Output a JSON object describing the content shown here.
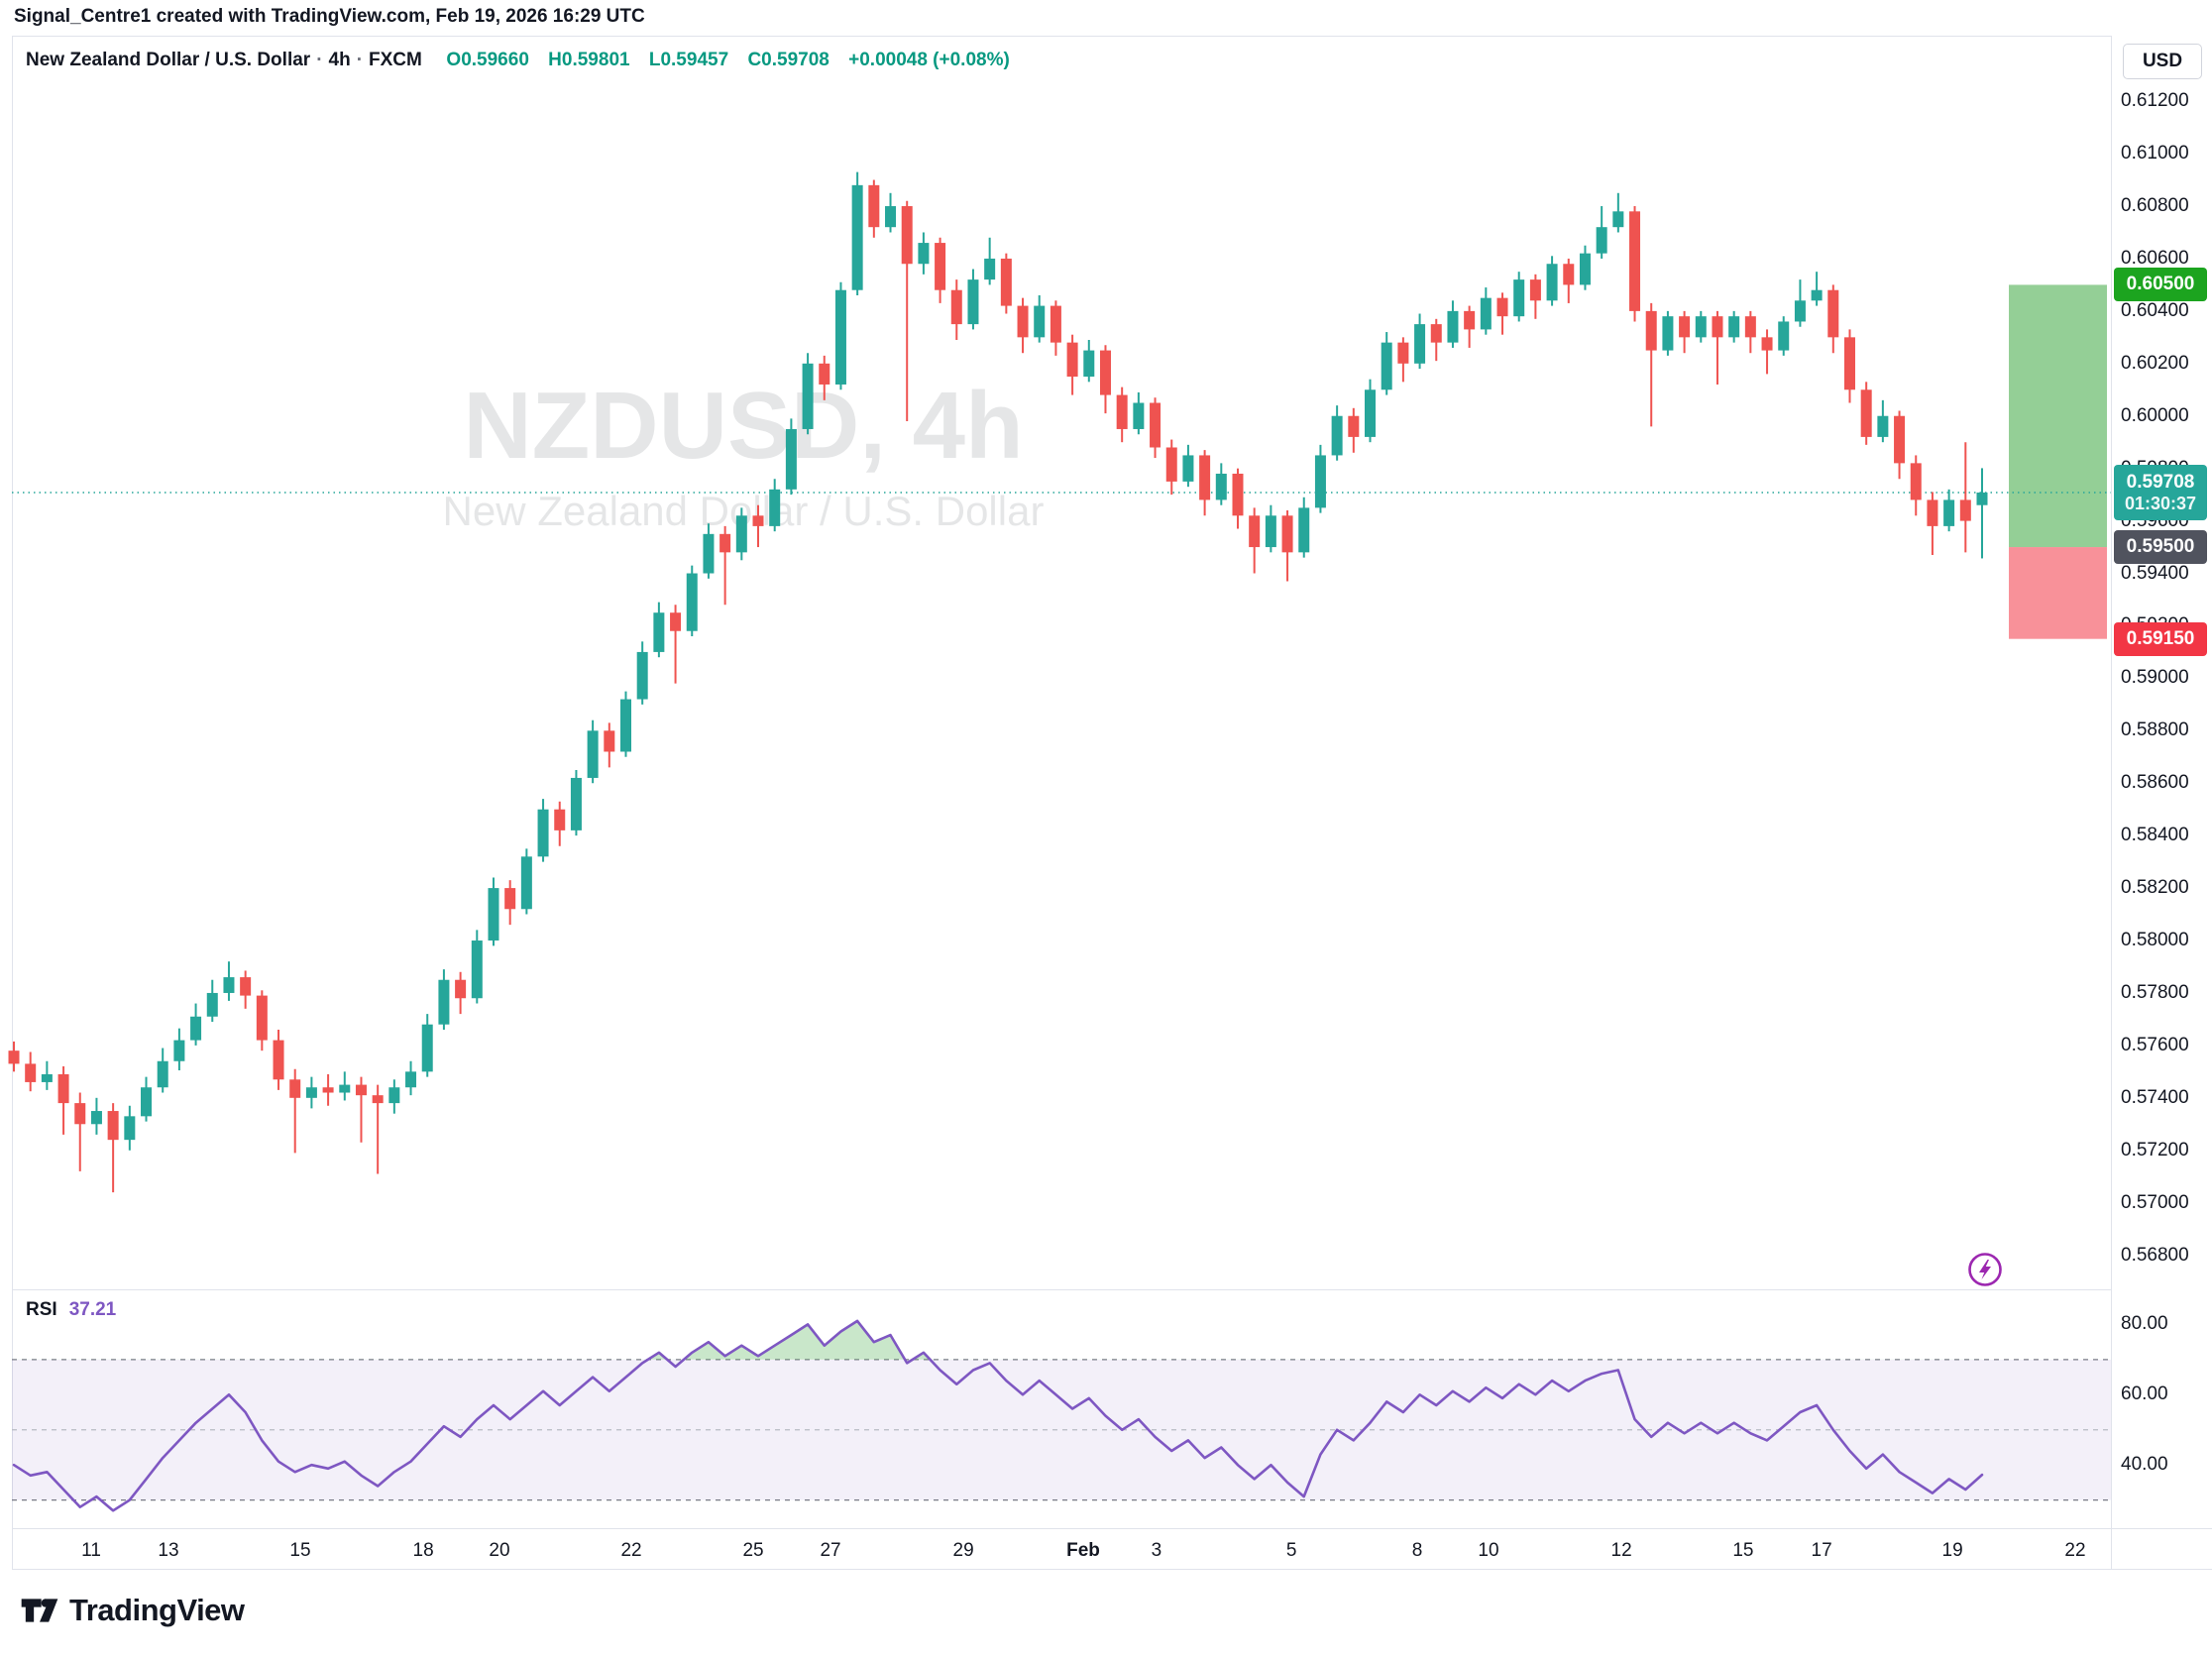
{
  "attribution": "Signal_Centre1 created with TradingView.com, Feb 19, 2026 16:29 UTC",
  "header": {
    "title": "New Zealand Dollar / U.S. Dollar",
    "dot": "·",
    "interval": "4h",
    "exchange": "FXCM",
    "open": "O0.59660",
    "high": "H0.59801",
    "low": "L0.59457",
    "close": "C0.59708",
    "change": "+0.00048 (+0.08%)"
  },
  "watermark": {
    "title": "NZDUSD, 4h",
    "subtitle": "New Zealand Dollar / U.S. Dollar"
  },
  "axis": {
    "currency_button": "USD",
    "price_ticks": [
      "0.61200",
      "0.61000",
      "0.60800",
      "0.60600",
      "0.60400",
      "0.60200",
      "0.60000",
      "0.59800",
      "0.59600",
      "0.59400",
      "0.59200",
      "0.59000",
      "0.58800",
      "0.58600",
      "0.58400",
      "0.58200",
      "0.58000",
      "0.57800",
      "0.57600",
      "0.57400",
      "0.57200",
      "0.57000",
      "0.56800"
    ],
    "price_max": 0.6145,
    "price_min": 0.5667
  },
  "chips": {
    "target": {
      "text": "0.60500",
      "price": 0.605,
      "bg": "#1CA41F"
    },
    "current": {
      "price_text": "0.59708",
      "countdown": "01:30:37",
      "price": 0.59708,
      "bg": "#26A69A"
    },
    "mid": {
      "text": "0.59500",
      "price": 0.595,
      "bg": "#50535E"
    },
    "stop": {
      "text": "0.59150",
      "price": 0.5915,
      "bg": "#F23645"
    }
  },
  "zones": [
    {
      "from": 0.605,
      "to": 0.595,
      "color": "rgba(76,175,80,0.60)"
    },
    {
      "from": 0.595,
      "to": 0.5915,
      "color": "rgba(242,54,69,0.55)"
    }
  ],
  "current_price_line": {
    "price": 0.59708,
    "color": "#26A69A"
  },
  "footer": {
    "brand": "TradingView"
  },
  "chart_data": {
    "type": "candlestick",
    "symbol": "NZDUSD",
    "interval": "4h",
    "title": "New Zealand Dollar / U.S. Dollar - 4h - FXCM",
    "ylabel": "Price (USD)",
    "ylim": [
      0.5667,
      0.6145
    ],
    "grid": false,
    "up_color": "#26A69A",
    "down_color": "#EF5350",
    "last_bar": {
      "open": 0.5966,
      "high": 0.59801,
      "low": 0.59457,
      "close": 0.59708
    },
    "candles": [
      [
        0.5758,
        0.57615,
        0.575,
        0.5753
      ],
      [
        0.5753,
        0.57575,
        0.57425,
        0.5746
      ],
      [
        0.5746,
        0.5754,
        0.5743,
        0.5749
      ],
      [
        0.5749,
        0.5752,
        0.5726,
        0.5738
      ],
      [
        0.5738,
        0.5742,
        0.5712,
        0.573
      ],
      [
        0.573,
        0.574,
        0.5726,
        0.5735
      ],
      [
        0.5735,
        0.5738,
        0.5704,
        0.5724
      ],
      [
        0.5724,
        0.5737,
        0.572,
        0.5733
      ],
      [
        0.5733,
        0.5748,
        0.5731,
        0.5744
      ],
      [
        0.5744,
        0.5759,
        0.5742,
        0.5754
      ],
      [
        0.5754,
        0.57665,
        0.57505,
        0.5762
      ],
      [
        0.5762,
        0.5776,
        0.576,
        0.5771
      ],
      [
        0.5771,
        0.5785,
        0.5769,
        0.578
      ],
      [
        0.578,
        0.5792,
        0.5777,
        0.5786
      ],
      [
        0.5786,
        0.57885,
        0.5774,
        0.5779
      ],
      [
        0.5779,
        0.5781,
        0.5758,
        0.5762
      ],
      [
        0.5762,
        0.5766,
        0.5743,
        0.5747
      ],
      [
        0.5747,
        0.5751,
        0.5719,
        0.574
      ],
      [
        0.574,
        0.5748,
        0.5736,
        0.5744
      ],
      [
        0.5744,
        0.5749,
        0.5737,
        0.5742
      ],
      [
        0.5742,
        0.575,
        0.5739,
        0.5745
      ],
      [
        0.5745,
        0.5748,
        0.5723,
        0.5741
      ],
      [
        0.5741,
        0.5745,
        0.5711,
        0.5738
      ],
      [
        0.5738,
        0.5747,
        0.5734,
        0.5744
      ],
      [
        0.5744,
        0.5754,
        0.5741,
        0.575
      ],
      [
        0.575,
        0.5772,
        0.5748,
        0.5768
      ],
      [
        0.5768,
        0.5789,
        0.5766,
        0.5785
      ],
      [
        0.5785,
        0.5788,
        0.5772,
        0.5778
      ],
      [
        0.5778,
        0.5804,
        0.5776,
        0.58
      ],
      [
        0.58,
        0.5824,
        0.5798,
        0.582
      ],
      [
        0.582,
        0.5823,
        0.5806,
        0.5812
      ],
      [
        0.5812,
        0.5835,
        0.581,
        0.5832
      ],
      [
        0.5832,
        0.5854,
        0.583,
        0.585
      ],
      [
        0.585,
        0.5853,
        0.5836,
        0.5842
      ],
      [
        0.5842,
        0.5865,
        0.584,
        0.5862
      ],
      [
        0.5862,
        0.5884,
        0.586,
        0.588
      ],
      [
        0.588,
        0.5883,
        0.5866,
        0.5872
      ],
      [
        0.5872,
        0.5895,
        0.587,
        0.5892
      ],
      [
        0.5892,
        0.5914,
        0.589,
        0.591
      ],
      [
        0.591,
        0.5929,
        0.5908,
        0.5925
      ],
      [
        0.5925,
        0.5928,
        0.5898,
        0.5918
      ],
      [
        0.5918,
        0.5943,
        0.5916,
        0.594
      ],
      [
        0.594,
        0.5959,
        0.5938,
        0.5955
      ],
      [
        0.5955,
        0.5958,
        0.5928,
        0.5948
      ],
      [
        0.5948,
        0.5965,
        0.5945,
        0.5962
      ],
      [
        0.5962,
        0.5966,
        0.595,
        0.5958
      ],
      [
        0.5958,
        0.5976,
        0.5956,
        0.5972
      ],
      [
        0.5972,
        0.5999,
        0.597,
        0.5995
      ],
      [
        0.5995,
        0.6024,
        0.5993,
        0.602
      ],
      [
        0.602,
        0.6023,
        0.6006,
        0.6012
      ],
      [
        0.6012,
        0.6051,
        0.601,
        0.6048
      ],
      [
        0.6048,
        0.6093,
        0.6046,
        0.6088
      ],
      [
        0.6088,
        0.609,
        0.6068,
        0.6072
      ],
      [
        0.6072,
        0.6085,
        0.607,
        0.608
      ],
      [
        0.608,
        0.6082,
        0.5998,
        0.6058
      ],
      [
        0.6058,
        0.607,
        0.6054,
        0.6066
      ],
      [
        0.6066,
        0.6068,
        0.6043,
        0.6048
      ],
      [
        0.6048,
        0.6052,
        0.6029,
        0.6035
      ],
      [
        0.6035,
        0.6056,
        0.6033,
        0.6052
      ],
      [
        0.6052,
        0.6068,
        0.605,
        0.606
      ],
      [
        0.606,
        0.6062,
        0.6039,
        0.6042
      ],
      [
        0.6042,
        0.6045,
        0.6024,
        0.603
      ],
      [
        0.603,
        0.6046,
        0.6028,
        0.6042
      ],
      [
        0.6042,
        0.6044,
        0.6023,
        0.6028
      ],
      [
        0.6028,
        0.6031,
        0.6008,
        0.6015
      ],
      [
        0.6015,
        0.6029,
        0.6013,
        0.6025
      ],
      [
        0.6025,
        0.6027,
        0.6001,
        0.6008
      ],
      [
        0.6008,
        0.6011,
        0.599,
        0.5995
      ],
      [
        0.5995,
        0.6009,
        0.5993,
        0.6005
      ],
      [
        0.6005,
        0.6007,
        0.5984,
        0.5988
      ],
      [
        0.5988,
        0.5991,
        0.597,
        0.5975
      ],
      [
        0.5975,
        0.5989,
        0.5973,
        0.5985
      ],
      [
        0.5985,
        0.5987,
        0.5962,
        0.5968
      ],
      [
        0.5968,
        0.5982,
        0.5966,
        0.5978
      ],
      [
        0.5978,
        0.598,
        0.5957,
        0.5962
      ],
      [
        0.5962,
        0.5965,
        0.594,
        0.595
      ],
      [
        0.595,
        0.5966,
        0.5948,
        0.5962
      ],
      [
        0.5962,
        0.5964,
        0.5937,
        0.5948
      ],
      [
        0.5948,
        0.5969,
        0.5946,
        0.5965
      ],
      [
        0.5965,
        0.5989,
        0.5963,
        0.5985
      ],
      [
        0.5985,
        0.6004,
        0.5983,
        0.6
      ],
      [
        0.6,
        0.6003,
        0.5986,
        0.5992
      ],
      [
        0.5992,
        0.6014,
        0.599,
        0.601
      ],
      [
        0.601,
        0.6032,
        0.6008,
        0.6028
      ],
      [
        0.6028,
        0.603,
        0.6013,
        0.602
      ],
      [
        0.602,
        0.6039,
        0.6018,
        0.6035
      ],
      [
        0.6035,
        0.6037,
        0.6021,
        0.6028
      ],
      [
        0.6028,
        0.6044,
        0.6026,
        0.604
      ],
      [
        0.604,
        0.6042,
        0.6026,
        0.6033
      ],
      [
        0.6033,
        0.6049,
        0.6031,
        0.6045
      ],
      [
        0.6045,
        0.6047,
        0.6031,
        0.6038
      ],
      [
        0.6038,
        0.6055,
        0.6036,
        0.6052
      ],
      [
        0.6052,
        0.6054,
        0.6037,
        0.6044
      ],
      [
        0.6044,
        0.6061,
        0.6042,
        0.6058
      ],
      [
        0.6058,
        0.606,
        0.6043,
        0.605
      ],
      [
        0.605,
        0.6065,
        0.6048,
        0.6062
      ],
      [
        0.6062,
        0.608,
        0.606,
        0.6072
      ],
      [
        0.6072,
        0.6085,
        0.607,
        0.6078
      ],
      [
        0.6078,
        0.608,
        0.6036,
        0.604
      ],
      [
        0.604,
        0.6043,
        0.5996,
        0.6025
      ],
      [
        0.6025,
        0.604,
        0.6023,
        0.6038
      ],
      [
        0.6038,
        0.604,
        0.6024,
        0.603
      ],
      [
        0.603,
        0.604,
        0.6028,
        0.6038
      ],
      [
        0.6038,
        0.604,
        0.6012,
        0.603
      ],
      [
        0.603,
        0.604,
        0.6028,
        0.6038
      ],
      [
        0.6038,
        0.604,
        0.6024,
        0.603
      ],
      [
        0.603,
        0.6033,
        0.6016,
        0.6025
      ],
      [
        0.6025,
        0.6038,
        0.6023,
        0.6036
      ],
      [
        0.6036,
        0.6052,
        0.6034,
        0.6044
      ],
      [
        0.6044,
        0.6055,
        0.6042,
        0.6048
      ],
      [
        0.6048,
        0.605,
        0.6024,
        0.603
      ],
      [
        0.603,
        0.6033,
        0.6005,
        0.601
      ],
      [
        0.601,
        0.6013,
        0.5989,
        0.5992
      ],
      [
        0.5992,
        0.6006,
        0.599,
        0.6
      ],
      [
        0.6,
        0.6002,
        0.5976,
        0.5982
      ],
      [
        0.5982,
        0.5985,
        0.5962,
        0.5968
      ],
      [
        0.5968,
        0.5971,
        0.5947,
        0.5958
      ],
      [
        0.5958,
        0.5972,
        0.5956,
        0.5968
      ],
      [
        0.5968,
        0.599,
        0.5948,
        0.596
      ],
      [
        0.5966,
        0.59801,
        0.59457,
        0.59708
      ]
    ],
    "x_labels": [
      {
        "t": "11",
        "f": 0.0378
      },
      {
        "t": "13",
        "f": 0.0746
      },
      {
        "t": "15",
        "f": 0.1374
      },
      {
        "t": "18",
        "f": 0.196
      },
      {
        "t": "20",
        "f": 0.2323
      },
      {
        "t": "22",
        "f": 0.2951
      },
      {
        "t": "25",
        "f": 0.3532
      },
      {
        "t": "27",
        "f": 0.39
      },
      {
        "t": "29",
        "f": 0.4533
      },
      {
        "t": "Feb",
        "f": 0.5104,
        "b": 1
      },
      {
        "t": "3",
        "f": 0.5453
      },
      {
        "t": "5",
        "f": 0.6096
      },
      {
        "t": "8",
        "f": 0.6695
      },
      {
        "t": "10",
        "f": 0.7035
      },
      {
        "t": "12",
        "f": 0.7668
      },
      {
        "t": "15",
        "f": 0.8248
      },
      {
        "t": "17",
        "f": 0.8622
      },
      {
        "t": "19",
        "f": 0.9245
      },
      {
        "t": "22",
        "f": 0.983
      }
    ],
    "rsi": {
      "name": "RSI",
      "value_label": "37.21",
      "color": "#7E57C2",
      "scale_max": 90,
      "scale_min": 22,
      "ticks": [
        {
          "t": "80.00",
          "v": 80
        },
        {
          "t": "60.00",
          "v": 60
        },
        {
          "t": "40.00",
          "v": 40
        }
      ],
      "band": [
        30,
        70
      ],
      "mid": 50,
      "band_fill": "rgba(126,87,194,0.09)",
      "overbought_fill": "rgba(76,175,80,0.30)",
      "band_line_color": "#787B86",
      "mid_line_color": "#B8BBC4",
      "values": [
        40,
        37,
        38,
        33,
        28,
        31,
        27,
        30,
        36,
        42,
        47,
        52,
        56,
        60,
        55,
        47,
        41,
        38,
        40,
        39,
        41,
        37,
        34,
        38,
        41,
        46,
        51,
        48,
        53,
        57,
        53,
        57,
        61,
        57,
        61,
        65,
        61,
        65,
        69,
        72,
        68,
        72,
        75,
        71,
        74,
        71,
        74,
        77,
        80,
        74,
        78,
        81,
        75,
        77,
        69,
        72,
        67,
        63,
        67,
        69,
        64,
        60,
        64,
        60,
        56,
        59,
        54,
        50,
        53,
        48,
        44,
        47,
        42,
        45,
        40,
        36,
        40,
        35,
        31,
        43,
        50,
        47,
        52,
        58,
        55,
        60,
        57,
        61,
        58,
        62,
        59,
        63,
        60,
        64,
        61,
        64,
        66,
        67,
        53,
        48,
        52,
        49,
        52,
        49,
        52,
        49,
        47,
        51,
        55,
        57,
        50,
        44,
        39,
        43,
        38,
        35,
        32,
        36,
        33,
        37.21
      ]
    }
  }
}
